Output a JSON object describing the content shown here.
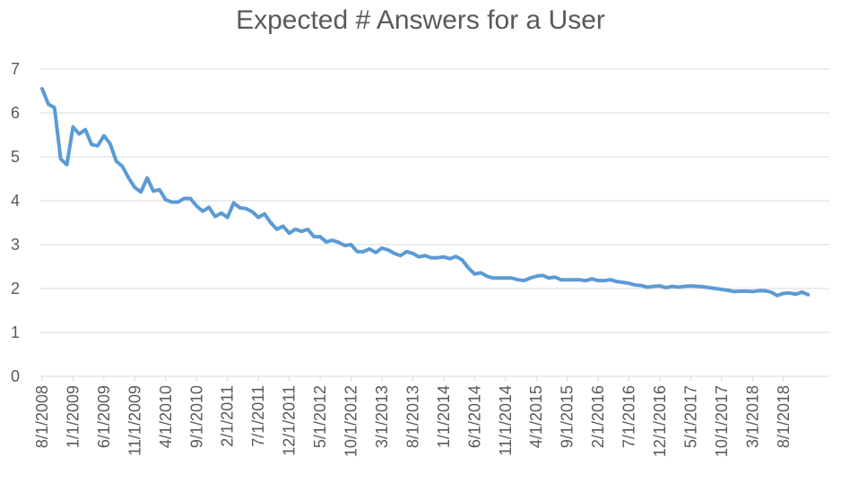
{
  "chart_data": {
    "type": "line",
    "title": "Expected # Answers for a User",
    "xlabel": "",
    "ylabel": "",
    "ylim": [
      0,
      7
    ],
    "y_ticks": [
      "0",
      "1",
      "2",
      "3",
      "4",
      "5",
      "6",
      "7"
    ],
    "x_tick_labels": [
      "8/1/2008",
      "1/1/2009",
      "6/1/2009",
      "11/1/2009",
      "4/1/2010",
      "9/1/2010",
      "2/1/2011",
      "7/1/2011",
      "12/1/2011",
      "5/1/2012",
      "10/1/2012",
      "3/1/2013",
      "8/1/2013",
      "1/1/2014",
      "6/1/2014",
      "11/1/2014",
      "4/1/2015",
      "9/1/2015",
      "2/1/2016",
      "7/1/2016",
      "12/1/2016",
      "5/1/2017",
      "10/1/2017",
      "3/1/2018",
      "8/1/2018"
    ],
    "grid": true,
    "legend": "none",
    "series_color": "#5B9BD5",
    "series": [
      {
        "start": "8/1/2008",
        "frequency": "monthly",
        "values": [
          6.55,
          6.2,
          6.12,
          4.95,
          4.82,
          5.68,
          5.52,
          5.62,
          5.28,
          5.25,
          5.48,
          5.3,
          4.9,
          4.78,
          4.52,
          4.3,
          4.2,
          4.52,
          4.22,
          4.25,
          4.02,
          3.97,
          3.97,
          4.05,
          4.05,
          3.88,
          3.76,
          3.85,
          3.64,
          3.72,
          3.62,
          3.95,
          3.84,
          3.82,
          3.75,
          3.62,
          3.7,
          3.5,
          3.35,
          3.42,
          3.26,
          3.35,
          3.3,
          3.35,
          3.18,
          3.18,
          3.06,
          3.1,
          3.05,
          2.98,
          3.0,
          2.84,
          2.84,
          2.9,
          2.82,
          2.92,
          2.88,
          2.8,
          2.75,
          2.84,
          2.8,
          2.72,
          2.75,
          2.7,
          2.7,
          2.72,
          2.68,
          2.73,
          2.65,
          2.47,
          2.33,
          2.36,
          2.28,
          2.24,
          2.24,
          2.24,
          2.24,
          2.2,
          2.18,
          2.24,
          2.28,
          2.3,
          2.24,
          2.26,
          2.2,
          2.2,
          2.2,
          2.2,
          2.18,
          2.22,
          2.18,
          2.18,
          2.2,
          2.16,
          2.14,
          2.12,
          2.08,
          2.07,
          2.03,
          2.05,
          2.06,
          2.02,
          2.05,
          2.03,
          2.05,
          2.06,
          2.05,
          2.04,
          2.02,
          2.0,
          1.98,
          1.96,
          1.93,
          1.94,
          1.94,
          1.93,
          1.95,
          1.95,
          1.92,
          1.84,
          1.89,
          1.9,
          1.87,
          1.92,
          1.86
        ]
      }
    ]
  }
}
